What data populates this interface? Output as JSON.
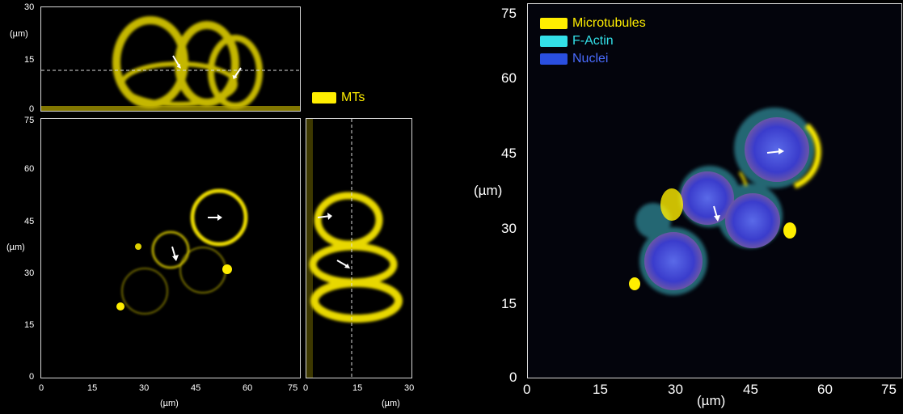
{
  "left_panel": {
    "top_view": {
      "y_ticks": [
        "30",
        "15",
        "0"
      ],
      "y_unit": "(µm)"
    },
    "main_view": {
      "y_ticks": [
        "75",
        "60",
        "45",
        "30",
        "15",
        "0"
      ],
      "x_ticks": [
        "0",
        "15",
        "30",
        "45",
        "60",
        "75"
      ],
      "y_unit": "(µm)",
      "x_unit": "(µm)"
    },
    "side_view": {
      "x_ticks": [
        "0",
        "15",
        "30"
      ],
      "x_unit": "(µm)"
    },
    "legend": {
      "label": "MTs",
      "color": "#ffee00"
    }
  },
  "right_panel": {
    "y_ticks": [
      "75",
      "60",
      "45",
      "30",
      "15",
      "0"
    ],
    "x_ticks": [
      "0",
      "15",
      "30",
      "45",
      "60",
      "75"
    ],
    "y_unit": "(µm)",
    "x_unit": "(µm)",
    "legend": [
      {
        "label": "Microtubules",
        "color": "#ffee00"
      },
      {
        "label": "F-Actin",
        "color": "#33e0e8"
      },
      {
        "label": "Nuclei",
        "color": "#2a4fe0"
      }
    ]
  }
}
